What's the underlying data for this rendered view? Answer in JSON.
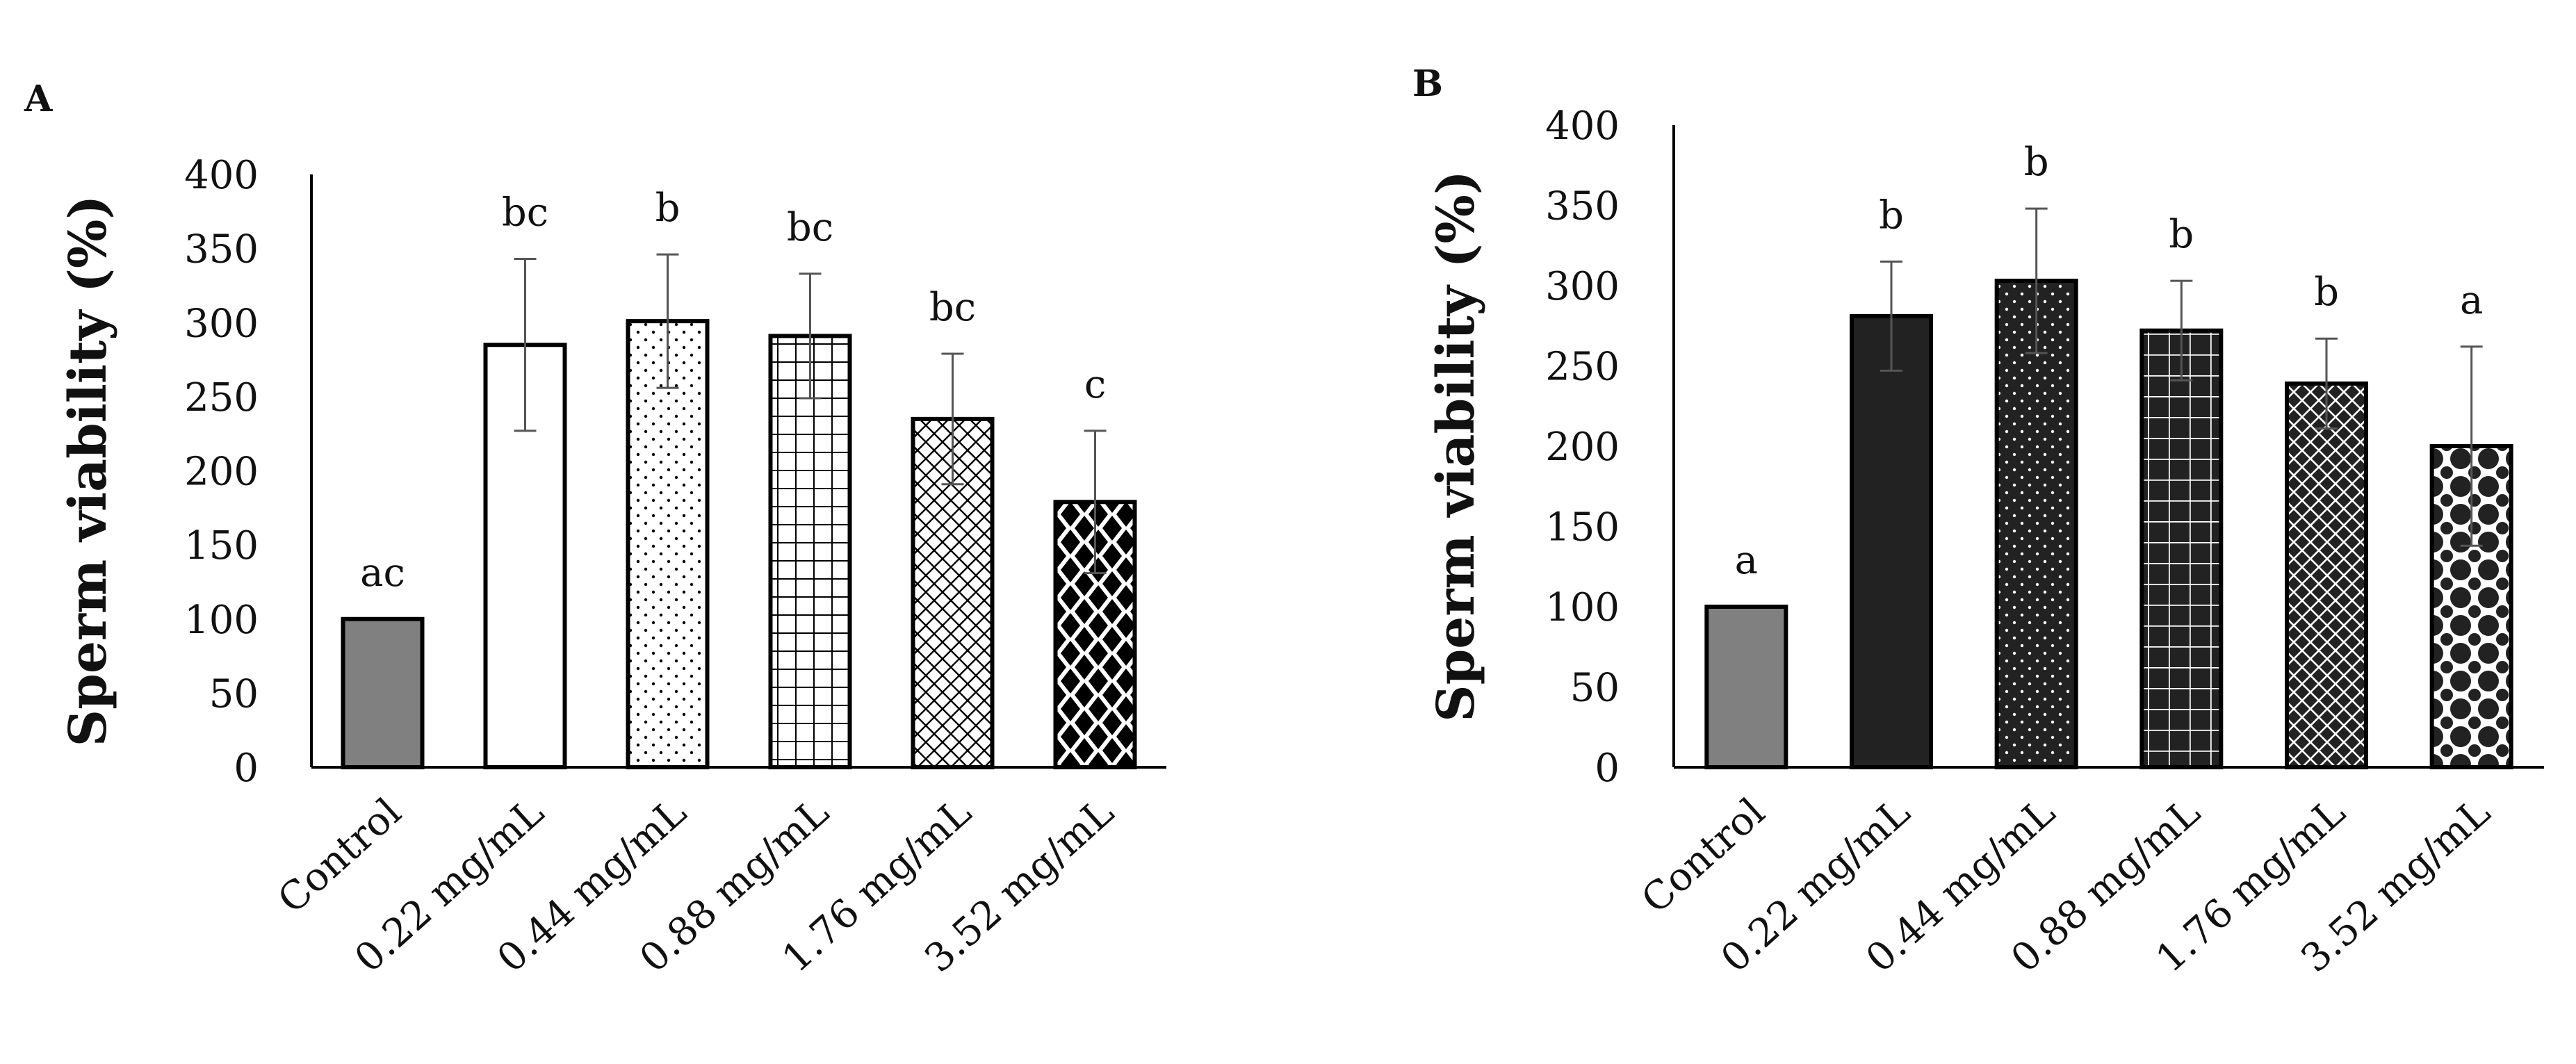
{
  "chart_data": [
    {
      "panel": "A",
      "type": "bar",
      "ylabel": "Sperm viability (%)",
      "xlabel": "",
      "ylim": [
        0,
        400
      ],
      "yticks": [
        0,
        50,
        100,
        150,
        200,
        250,
        300,
        350,
        400
      ],
      "categories": [
        "Control",
        "0.22 mg/mL",
        "0.44 mg/mL",
        "0.88 mg/mL",
        "1.76 mg/mL",
        "3.52 mg/mL"
      ],
      "values": [
        100,
        285,
        301,
        291,
        235,
        179
      ],
      "errors": [
        0,
        58,
        45,
        42,
        44,
        48
      ],
      "annotations": [
        "ac",
        "bc",
        "b",
        "bc",
        "bc",
        "c"
      ],
      "fills": [
        "solid-gray",
        "white",
        "dots",
        "grid",
        "diamond-lattice",
        "checker-diamonds"
      ]
    },
    {
      "panel": "B",
      "type": "bar",
      "ylabel": "Sperm viability (%)",
      "xlabel": "",
      "ylim": [
        0,
        400
      ],
      "yticks": [
        0,
        50,
        100,
        150,
        200,
        250,
        300,
        350,
        400
      ],
      "categories": [
        "Control",
        "0.22 mg/mL",
        "0.44 mg/mL",
        "0.88 mg/mL",
        "1.76 mg/mL",
        "3.52 mg/mL"
      ],
      "values": [
        100,
        281,
        303,
        272,
        239,
        200
      ],
      "errors": [
        0,
        34,
        45,
        31,
        28,
        62
      ],
      "annotations": [
        "a",
        "b",
        "b",
        "b",
        "b",
        "a"
      ],
      "fills": [
        "solid-gray",
        "solid-dark",
        "dark-dots",
        "dark-grid",
        "dark-diamond-lattice",
        "dark-circles"
      ]
    }
  ],
  "colors": {
    "control_fill": "#808080",
    "dark_fill": "#222222",
    "axis": "#000000",
    "error_bar": "#555555"
  }
}
